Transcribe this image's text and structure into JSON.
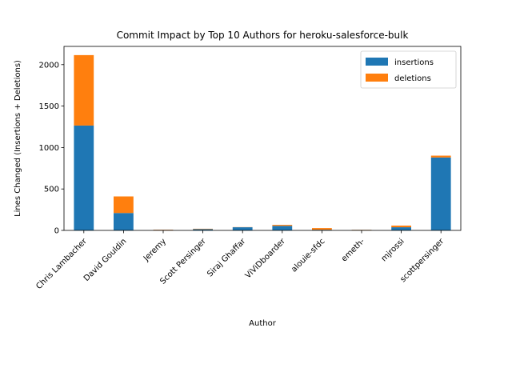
{
  "chart_data": {
    "type": "bar",
    "stacked": true,
    "title": "Commit Impact by Top 10 Authors for heroku-salesforce-bulk",
    "xlabel": "Author",
    "ylabel": "Lines Changed (Insertions + Deletions)",
    "categories": [
      "Chris Lambacher",
      "David Gouldin",
      "Jeremy",
      "Scott Persinger",
      "Siraj Ghaffar",
      "ViViDboarder",
      "alouie-sfdc",
      "emeth-",
      "mjrossi",
      "scottpersinger"
    ],
    "series": [
      {
        "name": "insertions",
        "color": "#1f77b4",
        "values": [
          1265,
          210,
          5,
          15,
          38,
          55,
          8,
          5,
          38,
          880
        ]
      },
      {
        "name": "deletions",
        "color": "#ff7f0e",
        "values": [
          850,
          200,
          3,
          5,
          2,
          12,
          20,
          2,
          20,
          22
        ]
      }
    ],
    "ylim": [
      0,
      2220
    ],
    "yticks": [
      0,
      500,
      1000,
      1500,
      2000
    ],
    "grid": false,
    "legend_position": "top-right"
  }
}
